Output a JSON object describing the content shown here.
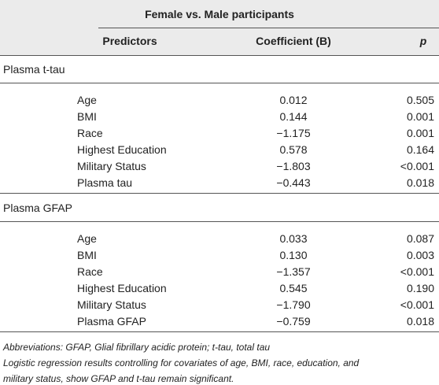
{
  "table": {
    "title": "Female vs. Male participants",
    "headers": [
      "Predictors",
      "Coefficient (B)",
      "p"
    ],
    "sections": [
      {
        "label": "Plasma t-tau",
        "rows": [
          [
            "Age",
            "0.012",
            "0.505"
          ],
          [
            "BMI",
            "0.144",
            "0.001"
          ],
          [
            "Race",
            "−1.175",
            "0.001"
          ],
          [
            "Highest Education",
            "0.578",
            "0.164"
          ],
          [
            "Military Status",
            "−1.803",
            "<0.001"
          ],
          [
            "Plasma tau",
            "−0.443",
            "0.018"
          ]
        ]
      },
      {
        "label": "Plasma GFAP",
        "rows": [
          [
            "Age",
            "0.033",
            "0.087"
          ],
          [
            "BMI",
            "0.130",
            "0.003"
          ],
          [
            "Race",
            "−1.357",
            "<0.001"
          ],
          [
            "Highest Education",
            "0.545",
            "0.190"
          ],
          [
            "Military Status",
            "−1.790",
            "<0.001"
          ],
          [
            "Plasma GFAP",
            "−0.759",
            "0.018"
          ]
        ]
      }
    ],
    "footnotes": [
      "Abbreviations: GFAP, Glial fibrillary acidic protein; t-tau, total tau",
      "Logistic regression results controlling for covariates of age, BMI, race, education, and",
      "military status, show GFAP and t-tau remain significant."
    ]
  }
}
